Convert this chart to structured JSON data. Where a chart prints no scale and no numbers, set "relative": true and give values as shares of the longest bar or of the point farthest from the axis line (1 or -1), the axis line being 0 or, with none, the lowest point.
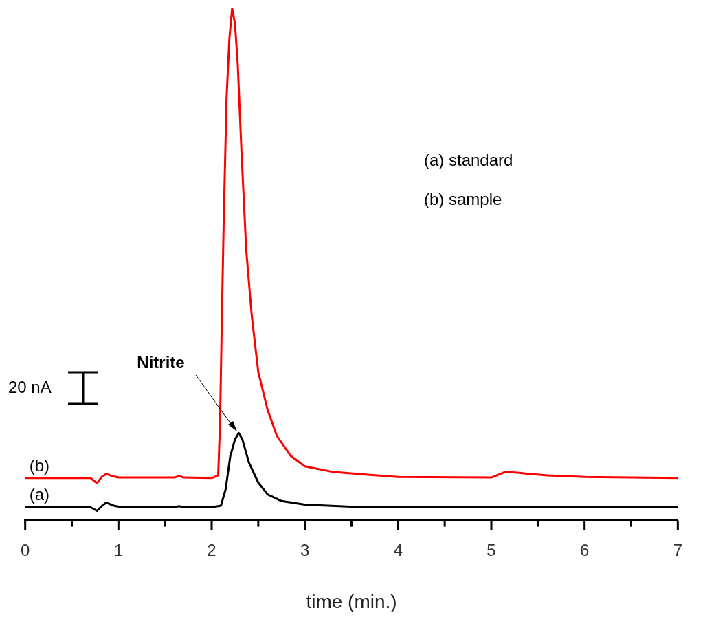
{
  "chart_data": {
    "type": "line",
    "relative": true,
    "xlabel": "time (min.)",
    "xlim": [
      0,
      7
    ],
    "xticks": [
      0,
      {
        "value": 0.5,
        "label": null
      },
      1,
      {
        "value": 1.5,
        "label": null
      },
      2,
      {
        "value": 2.5,
        "label": null
      },
      3,
      {
        "value": 3.5,
        "label": null
      },
      4,
      {
        "value": 4.5,
        "label": null
      },
      5,
      {
        "value": 5.5,
        "label": null
      },
      6,
      {
        "value": 6.5,
        "label": null
      },
      7
    ],
    "grid": false,
    "legend": false,
    "marker": "none",
    "line_style": "solid",
    "annotations": [
      "(a) standard",
      "(b) sample",
      "20 nA",
      {
        "text": "Nitrite",
        "x": 2.29,
        "y": 0.171
      }
    ],
    "series": [
      {
        "name": "(a)",
        "color": "#000000",
        "x": [
          0,
          0.7,
          0.77,
          0.82,
          0.87,
          0.95,
          1.0,
          1.6,
          1.65,
          1.7,
          2.0,
          2.1,
          2.15,
          2.2,
          2.25,
          2.29,
          2.33,
          2.4,
          2.5,
          2.6,
          2.75,
          3.0,
          3.5,
          4.0,
          5.0,
          6.0,
          7.0
        ],
        "values": [
          0.026,
          0.026,
          0.019,
          0.028,
          0.035,
          0.029,
          0.027,
          0.026,
          0.028,
          0.026,
          0.026,
          0.029,
          0.061,
          0.126,
          0.158,
          0.171,
          0.158,
          0.113,
          0.074,
          0.051,
          0.038,
          0.031,
          0.027,
          0.026,
          0.026,
          0.026,
          0.026
        ]
      },
      {
        "name": "(b)",
        "color": "#ff0000",
        "x": [
          0,
          0.7,
          0.77,
          0.82,
          0.87,
          0.95,
          1.0,
          1.6,
          1.65,
          1.7,
          2.0,
          2.07,
          2.09,
          2.11,
          2.13,
          2.16,
          2.19,
          2.22,
          2.25,
          2.28,
          2.32,
          2.37,
          2.43,
          2.5,
          2.6,
          2.7,
          2.85,
          3.0,
          3.3,
          3.7,
          4.0,
          5.0,
          5.15,
          5.3,
          5.6,
          6.0,
          7.0
        ],
        "values": [
          0.083,
          0.083,
          0.073,
          0.085,
          0.091,
          0.086,
          0.084,
          0.084,
          0.087,
          0.084,
          0.083,
          0.088,
          0.19,
          0.4,
          0.59,
          0.825,
          0.94,
          1.0,
          0.97,
          0.89,
          0.72,
          0.53,
          0.4,
          0.29,
          0.216,
          0.165,
          0.126,
          0.106,
          0.095,
          0.089,
          0.085,
          0.084,
          0.095,
          0.093,
          0.088,
          0.085,
          0.083
        ]
      }
    ]
  }
}
